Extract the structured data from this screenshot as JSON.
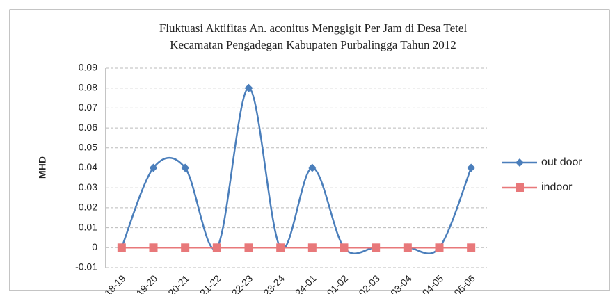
{
  "chart_data": {
    "type": "line",
    "title": [
      "Fluktuasi Aktifitas An. aconitus Menggigit Per Jam di Desa Tetel",
      "Kecamatan Pengadegan Kabupaten Purbalingga Tahun 2012"
    ],
    "y_label": "MHD",
    "categories": [
      "18-19",
      "19-20",
      "20-21",
      "21-22",
      "22-23",
      "23-24",
      "24-01",
      "01-02",
      "02-03",
      "03-04",
      "04-05",
      "05-06"
    ],
    "series": [
      {
        "name": "out door",
        "color": "#4a7ebb",
        "values": [
          0,
          0.04,
          0.04,
          0,
          0.08,
          0,
          0.04,
          0,
          0,
          0,
          0,
          0.04
        ]
      },
      {
        "name": "indoor",
        "color": "#e8787a",
        "values": [
          0,
          0,
          0,
          0,
          0,
          0,
          0,
          0,
          0,
          0,
          0,
          0
        ]
      }
    ],
    "ylim": [
      -0.01,
      0.09
    ],
    "yticks": [
      -0.01,
      0,
      0.01,
      0.02,
      0.03,
      0.04,
      0.05,
      0.06,
      0.07,
      0.08,
      0.09
    ],
    "grid": true,
    "legend": "right"
  }
}
